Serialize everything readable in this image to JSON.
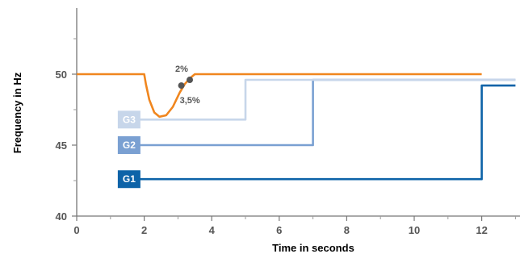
{
  "chart_data": {
    "type": "line",
    "xlabel": "Time in seconds",
    "ylabel": "Frequency in Hz",
    "xlim": [
      0,
      13
    ],
    "ylim": [
      40,
      55
    ],
    "x_ticks": [
      0,
      2,
      4,
      6,
      8,
      10,
      12
    ],
    "y_ticks": [
      40,
      45,
      50
    ],
    "grid": false,
    "series": [
      {
        "name": "",
        "color": "#f0861e",
        "points": [
          [
            0,
            50
          ],
          [
            2,
            50
          ],
          [
            2.05,
            49.3
          ],
          [
            2.15,
            48.2
          ],
          [
            2.3,
            47.3
          ],
          [
            2.45,
            47.0
          ],
          [
            2.65,
            47.1
          ],
          [
            2.85,
            47.7
          ],
          [
            3.05,
            48.7
          ],
          [
            3.2,
            49.3
          ],
          [
            3.35,
            49.7
          ],
          [
            3.5,
            50
          ],
          [
            12,
            50
          ]
        ]
      },
      {
        "name": "G3",
        "color": "#c7d6ea",
        "points": [
          [
            1.6,
            46.8
          ],
          [
            5,
            46.8
          ],
          [
            5,
            49.6
          ],
          [
            13,
            49.6
          ]
        ]
      },
      {
        "name": "G2",
        "color": "#7aa0d2",
        "points": [
          [
            1.6,
            45
          ],
          [
            7,
            45
          ],
          [
            7,
            49.6
          ],
          [
            13,
            49.6
          ]
        ]
      },
      {
        "name": "G1",
        "color": "#0d63a8",
        "points": [
          [
            1.6,
            42.6
          ],
          [
            12,
            42.6
          ],
          [
            12,
            49.2
          ],
          [
            13,
            49.2
          ]
        ]
      }
    ],
    "markers": [
      {
        "x": 3.1,
        "y": 49.2,
        "label": "3,5%"
      },
      {
        "x": 3.35,
        "y": 49.6,
        "label": "2%"
      }
    ]
  }
}
